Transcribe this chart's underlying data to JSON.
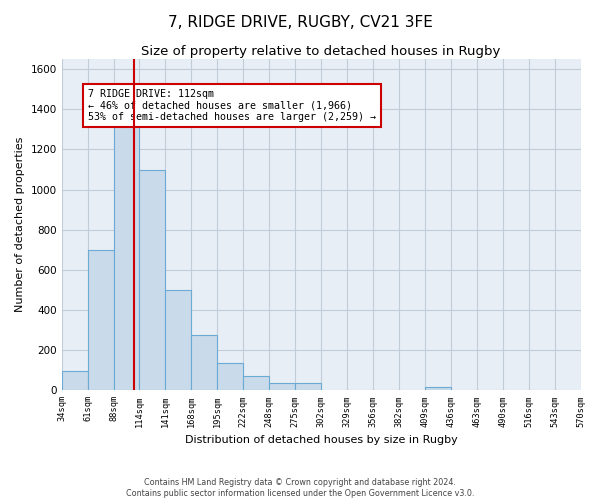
{
  "title": "7, RIDGE DRIVE, RUGBY, CV21 3FE",
  "subtitle": "Size of property relative to detached houses in Rugby",
  "xlabel": "Distribution of detached houses by size in Rugby",
  "ylabel": "Number of detached properties",
  "footnote1": "Contains HM Land Registry data © Crown copyright and database right 2024.",
  "footnote2": "Contains public sector information licensed under the Open Government Licence v3.0.",
  "annotation_title": "7 RIDGE DRIVE: 112sqm",
  "annotation_line1": "← 46% of detached houses are smaller (1,966)",
  "annotation_line2": "53% of semi-detached houses are larger (2,259) →",
  "property_bin_index": 2.78,
  "bar_heights": [
    95,
    700,
    1330,
    1100,
    500,
    275,
    135,
    70,
    35,
    35,
    0,
    0,
    0,
    0,
    15,
    0,
    0,
    0,
    0,
    0
  ],
  "bar_color": "#c9daea",
  "bar_edge_color": "#6aaad4",
  "vline_color": "#cc0000",
  "annotation_box_color": "#cc0000",
  "annotation_fill": "#ffffff",
  "ylim": [
    0,
    1650
  ],
  "yticks": [
    0,
    200,
    400,
    600,
    800,
    1000,
    1200,
    1400,
    1600
  ],
  "grid_color": "#c0ccd8",
  "bg_color": "#e8eef5",
  "title_fontsize": 11,
  "subtitle_fontsize": 9.5,
  "xlabel_fontsize": 8,
  "ylabel_fontsize": 8,
  "tick_labels": [
    "34sqm",
    "61sqm",
    "88sqm",
    "114sqm",
    "141sqm",
    "168sqm",
    "195sqm",
    "222sqm",
    "248sqm",
    "275sqm",
    "302sqm",
    "329sqm",
    "356sqm",
    "382sqm",
    "409sqm",
    "436sqm",
    "463sqm",
    "490sqm",
    "516sqm",
    "543sqm",
    "570sqm"
  ]
}
